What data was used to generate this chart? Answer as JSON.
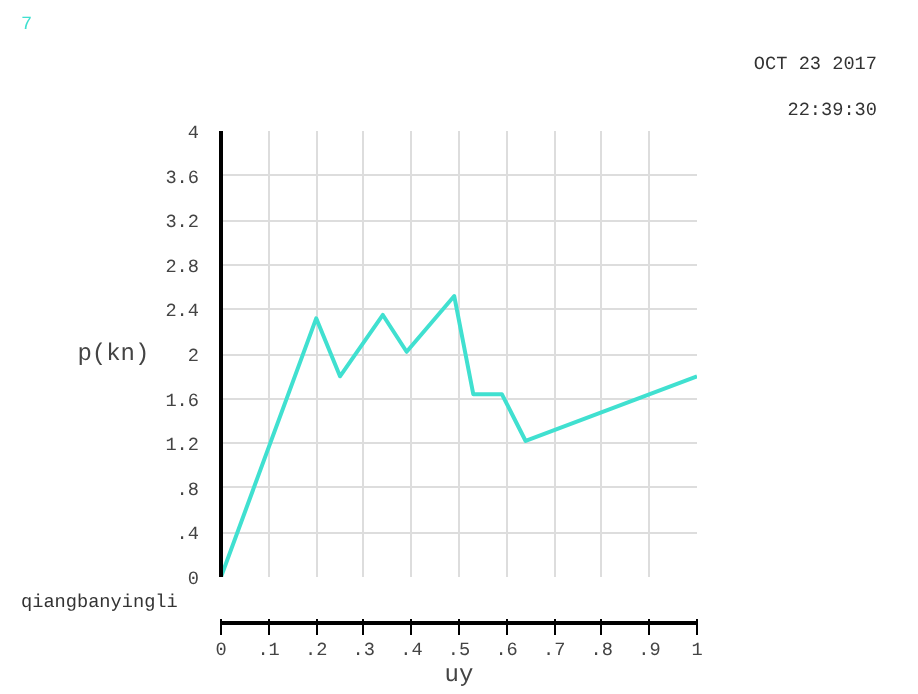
{
  "chart_data": {
    "type": "line",
    "title": "qiangbanyingli",
    "xlabel": "uy",
    "ylabel": "p(kn)",
    "annotations": [
      "OCT 23 2017",
      "22:39:30"
    ],
    "series": [
      {
        "name": "7",
        "color": "#40e0d0",
        "x": [
          0,
          0.2,
          0.25,
          0.34,
          0.39,
          0.49,
          0.53,
          0.59,
          0.64,
          1.0
        ],
        "values": [
          0,
          2.32,
          1.8,
          2.35,
          2.02,
          2.52,
          1.64,
          1.64,
          1.22,
          1.8
        ]
      }
    ],
    "xlim": [
      0,
      1
    ],
    "ylim": [
      0,
      4
    ],
    "xticks": [
      0,
      {
        "value": 0.1,
        "label": ".1"
      },
      {
        "value": 0.2,
        "label": ".2"
      },
      {
        "value": 0.3,
        "label": ".3"
      },
      {
        "value": 0.4,
        "label": ".4"
      },
      {
        "value": 0.5,
        "label": ".5"
      },
      {
        "value": 0.6,
        "label": ".6"
      },
      {
        "value": 0.7,
        "label": ".7"
      },
      {
        "value": 0.8,
        "label": ".8"
      },
      {
        "value": 0.9,
        "label": ".9"
      },
      1
    ],
    "yticks": [
      0,
      {
        "value": 0.4,
        "label": ".4"
      },
      {
        "value": 0.8,
        "label": ".8"
      },
      {
        "value": 1.2,
        "label": "1.2"
      },
      {
        "value": 1.6,
        "label": "1.6"
      },
      2,
      {
        "value": 2.4,
        "label": "2.4"
      },
      {
        "value": 2.8,
        "label": "2.8"
      },
      {
        "value": 3.2,
        "label": "3.2"
      },
      {
        "value": 3.6,
        "label": "3.6"
      },
      4
    ],
    "grid": true,
    "marker": "none",
    "line_style": "solid"
  }
}
